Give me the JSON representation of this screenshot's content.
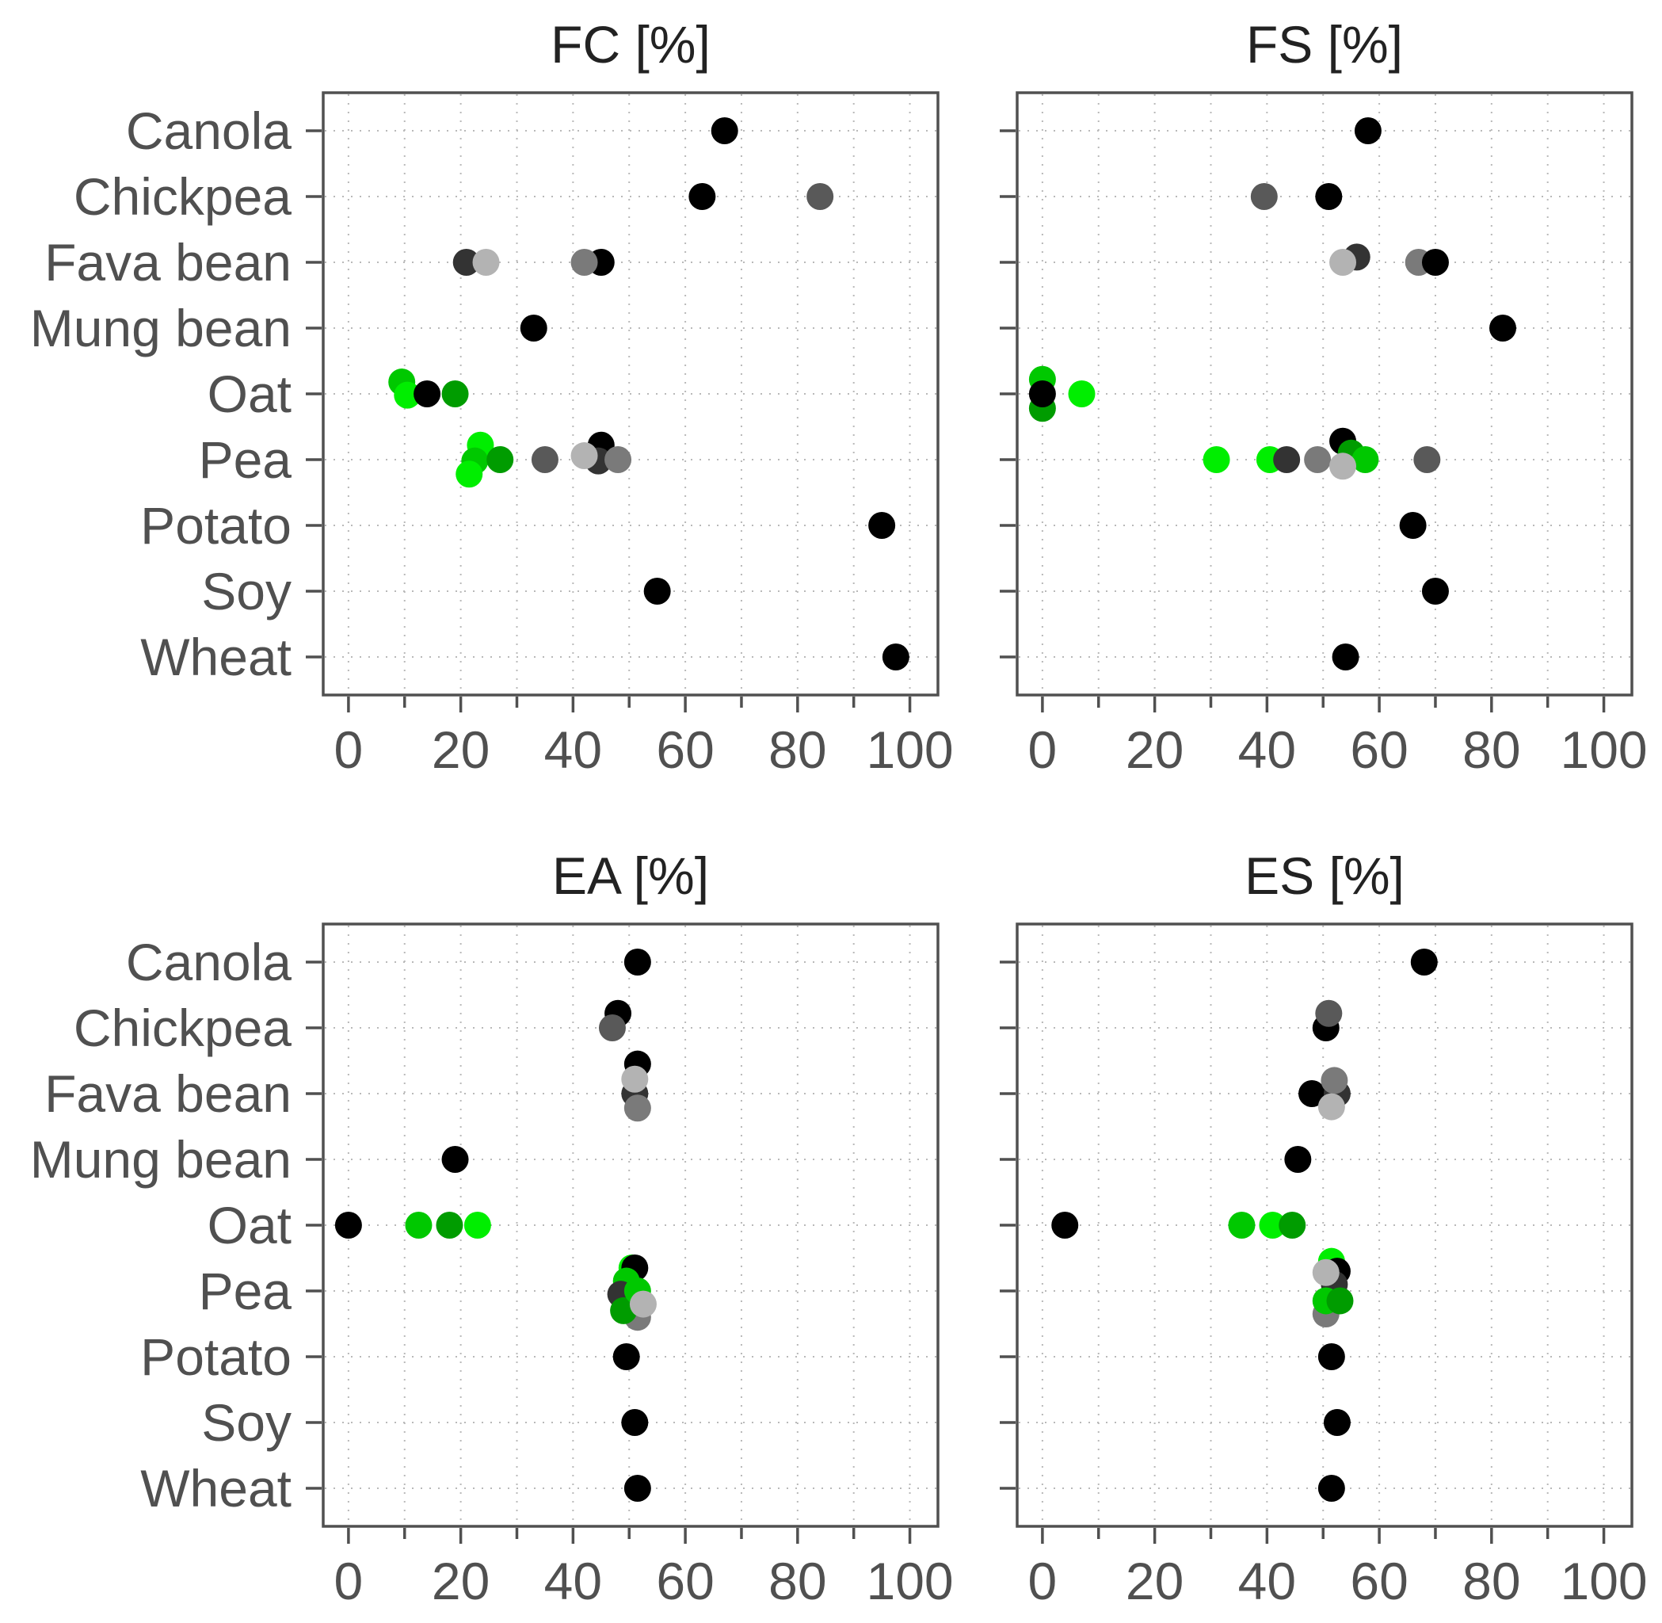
{
  "chart_data": {
    "type": "scatter",
    "layout": "2x2 facet grid, shared y categories",
    "categories": [
      "Canola",
      "Chickpea",
      "Fava bean",
      "Mung bean",
      "Oat",
      "Pea",
      "Potato",
      "Soy",
      "Wheat"
    ],
    "x_ticks": [
      0,
      20,
      40,
      60,
      80,
      100
    ],
    "xlim": [
      -4.5,
      105
    ],
    "grid": "dotted",
    "legend": "none",
    "color_legend": {
      "black": "#000000",
      "dark_grey": "#333333",
      "grey": "#595959",
      "mid_grey": "#7a7a7a",
      "light_grey": "#b3b3b3",
      "bright_green": "#00ee00",
      "green": "#00c800",
      "dark_green": "#009c00"
    },
    "panels": [
      {
        "id": "fc",
        "title": "FC [%]",
        "points": [
          {
            "category": "Canola",
            "x": 67,
            "offset": 0,
            "color": "#000000"
          },
          {
            "category": "Chickpea",
            "x": 63,
            "offset": 0,
            "color": "#000000"
          },
          {
            "category": "Chickpea",
            "x": 84,
            "offset": 0,
            "color": "#595959"
          },
          {
            "category": "Fava bean",
            "x": 21,
            "offset": 0,
            "color": "#333333"
          },
          {
            "category": "Fava bean",
            "x": 24.5,
            "offset": 0,
            "color": "#b3b3b3"
          },
          {
            "category": "Fava bean",
            "x": 45,
            "offset": 0,
            "color": "#000000"
          },
          {
            "category": "Fava bean",
            "x": 42,
            "offset": 0,
            "color": "#7a7a7a"
          },
          {
            "category": "Mung bean",
            "x": 33,
            "offset": 0,
            "color": "#000000"
          },
          {
            "category": "Oat",
            "x": 9.5,
            "offset": -0.18,
            "color": "#00c800"
          },
          {
            "category": "Oat",
            "x": 10.5,
            "offset": 0.02,
            "color": "#00ee00"
          },
          {
            "category": "Oat",
            "x": 14,
            "offset": 0,
            "color": "#000000"
          },
          {
            "category": "Oat",
            "x": 19,
            "offset": 0,
            "color": "#009c00"
          },
          {
            "category": "Pea",
            "x": 23.5,
            "offset": -0.22,
            "color": "#00ee00"
          },
          {
            "category": "Pea",
            "x": 22.5,
            "offset": 0.02,
            "color": "#00c800"
          },
          {
            "category": "Pea",
            "x": 21.5,
            "offset": 0.22,
            "color": "#00ee00"
          },
          {
            "category": "Pea",
            "x": 27,
            "offset": 0,
            "color": "#009c00"
          },
          {
            "category": "Pea",
            "x": 35,
            "offset": 0,
            "color": "#595959"
          },
          {
            "category": "Pea",
            "x": 45,
            "offset": -0.22,
            "color": "#000000"
          },
          {
            "category": "Pea",
            "x": 44.5,
            "offset": 0.02,
            "color": "#333333"
          },
          {
            "category": "Pea",
            "x": 48,
            "offset": 0,
            "color": "#7a7a7a"
          },
          {
            "category": "Pea",
            "x": 42,
            "offset": -0.06,
            "color": "#b3b3b3"
          },
          {
            "category": "Potato",
            "x": 95,
            "offset": 0,
            "color": "#000000"
          },
          {
            "category": "Soy",
            "x": 55,
            "offset": 0,
            "color": "#000000"
          },
          {
            "category": "Wheat",
            "x": 97.5,
            "offset": 0,
            "color": "#000000"
          }
        ]
      },
      {
        "id": "fs",
        "title": "FS [%]",
        "points": [
          {
            "category": "Canola",
            "x": 58,
            "offset": 0,
            "color": "#000000"
          },
          {
            "category": "Chickpea",
            "x": 39.5,
            "offset": 0,
            "color": "#595959"
          },
          {
            "category": "Chickpea",
            "x": 51,
            "offset": 0,
            "color": "#000000"
          },
          {
            "category": "Fava bean",
            "x": 56,
            "offset": -0.08,
            "color": "#333333"
          },
          {
            "category": "Fava bean",
            "x": 53.5,
            "offset": 0,
            "color": "#b3b3b3"
          },
          {
            "category": "Fava bean",
            "x": 67,
            "offset": 0,
            "color": "#7a7a7a"
          },
          {
            "category": "Fava bean",
            "x": 70,
            "offset": 0,
            "color": "#000000"
          },
          {
            "category": "Mung bean",
            "x": 82,
            "offset": 0,
            "color": "#000000"
          },
          {
            "category": "Oat",
            "x": 0,
            "offset": -0.22,
            "color": "#00c800"
          },
          {
            "category": "Oat",
            "x": 0,
            "offset": 0.22,
            "color": "#009c00"
          },
          {
            "category": "Oat",
            "x": 0,
            "offset": 0,
            "color": "#000000"
          },
          {
            "category": "Oat",
            "x": 7,
            "offset": 0,
            "color": "#00ee00"
          },
          {
            "category": "Pea",
            "x": 31,
            "offset": 0,
            "color": "#00ee00"
          },
          {
            "category": "Pea",
            "x": 40.5,
            "offset": 0,
            "color": "#00ee00"
          },
          {
            "category": "Pea",
            "x": 43.5,
            "offset": 0,
            "color": "#333333"
          },
          {
            "category": "Pea",
            "x": 49,
            "offset": 0,
            "color": "#7a7a7a"
          },
          {
            "category": "Pea",
            "x": 53.5,
            "offset": -0.28,
            "color": "#000000"
          },
          {
            "category": "Pea",
            "x": 55,
            "offset": -0.1,
            "color": "#009c00"
          },
          {
            "category": "Pea",
            "x": 57.5,
            "offset": 0,
            "color": "#00c800"
          },
          {
            "category": "Pea",
            "x": 53.5,
            "offset": 0.1,
            "color": "#b3b3b3"
          },
          {
            "category": "Pea",
            "x": 68.5,
            "offset": 0,
            "color": "#595959"
          },
          {
            "category": "Potato",
            "x": 66,
            "offset": 0,
            "color": "#000000"
          },
          {
            "category": "Soy",
            "x": 70,
            "offset": 0,
            "color": "#000000"
          },
          {
            "category": "Wheat",
            "x": 54,
            "offset": 0,
            "color": "#000000"
          }
        ]
      },
      {
        "id": "ea",
        "title": "EA [%]",
        "points": [
          {
            "category": "Canola",
            "x": 51.5,
            "offset": 0,
            "color": "#000000"
          },
          {
            "category": "Chickpea",
            "x": 48,
            "offset": -0.22,
            "color": "#000000"
          },
          {
            "category": "Chickpea",
            "x": 47,
            "offset": 0,
            "color": "#595959"
          },
          {
            "category": "Fava bean",
            "x": 51.5,
            "offset": -0.45,
            "color": "#000000"
          },
          {
            "category": "Fava bean",
            "x": 51,
            "offset": 0,
            "color": "#333333"
          },
          {
            "category": "Fava bean",
            "x": 51.5,
            "offset": 0.22,
            "color": "#7a7a7a"
          },
          {
            "category": "Fava bean",
            "x": 51,
            "offset": -0.22,
            "color": "#b3b3b3"
          },
          {
            "category": "Mung bean",
            "x": 19,
            "offset": 0,
            "color": "#000000"
          },
          {
            "category": "Oat",
            "x": 0,
            "offset": 0,
            "color": "#000000"
          },
          {
            "category": "Oat",
            "x": 12.5,
            "offset": 0,
            "color": "#00c800"
          },
          {
            "category": "Oat",
            "x": 18,
            "offset": 0,
            "color": "#009c00"
          },
          {
            "category": "Oat",
            "x": 23,
            "offset": 0,
            "color": "#00ee00"
          },
          {
            "category": "Pea",
            "x": 50.5,
            "offset": -0.35,
            "color": "#00ee00"
          },
          {
            "category": "Pea",
            "x": 51,
            "offset": -0.35,
            "color": "#000000"
          },
          {
            "category": "Pea",
            "x": 49.5,
            "offset": -0.15,
            "color": "#00c800"
          },
          {
            "category": "Pea",
            "x": 48.5,
            "offset": 0.05,
            "color": "#333333"
          },
          {
            "category": "Pea",
            "x": 51.5,
            "offset": 0.4,
            "color": "#7a7a7a"
          },
          {
            "category": "Pea",
            "x": 49,
            "offset": 0.3,
            "color": "#009c00"
          },
          {
            "category": "Pea",
            "x": 51.5,
            "offset": 0,
            "color": "#00c800"
          },
          {
            "category": "Pea",
            "x": 52.5,
            "offset": 0.2,
            "color": "#b3b3b3"
          },
          {
            "category": "Potato",
            "x": 49.5,
            "offset": 0,
            "color": "#000000"
          },
          {
            "category": "Soy",
            "x": 51,
            "offset": 0,
            "color": "#000000"
          },
          {
            "category": "Wheat",
            "x": 51.5,
            "offset": 0,
            "color": "#000000"
          }
        ]
      },
      {
        "id": "es",
        "title": "ES [%]",
        "points": [
          {
            "category": "Canola",
            "x": 68,
            "offset": 0,
            "color": "#000000"
          },
          {
            "category": "Chickpea",
            "x": 50.5,
            "offset": 0,
            "color": "#000000"
          },
          {
            "category": "Chickpea",
            "x": 51,
            "offset": -0.22,
            "color": "#595959"
          },
          {
            "category": "Fava bean",
            "x": 48,
            "offset": 0,
            "color": "#000000"
          },
          {
            "category": "Fava bean",
            "x": 52.5,
            "offset": 0,
            "color": "#333333"
          },
          {
            "category": "Fava bean",
            "x": 52,
            "offset": -0.2,
            "color": "#7a7a7a"
          },
          {
            "category": "Fava bean",
            "x": 51.5,
            "offset": 0.2,
            "color": "#b3b3b3"
          },
          {
            "category": "Mung bean",
            "x": 45.5,
            "offset": 0,
            "color": "#000000"
          },
          {
            "category": "Oat",
            "x": 4,
            "offset": 0,
            "color": "#000000"
          },
          {
            "category": "Oat",
            "x": 35.5,
            "offset": 0,
            "color": "#00c800"
          },
          {
            "category": "Oat",
            "x": 41,
            "offset": 0,
            "color": "#00ee00"
          },
          {
            "category": "Oat",
            "x": 44.5,
            "offset": 0,
            "color": "#009c00"
          },
          {
            "category": "Pea",
            "x": 51.5,
            "offset": -0.45,
            "color": "#00ee00"
          },
          {
            "category": "Pea",
            "x": 52.5,
            "offset": -0.3,
            "color": "#000000"
          },
          {
            "category": "Pea",
            "x": 52,
            "offset": -0.1,
            "color": "#333333"
          },
          {
            "category": "Pea",
            "x": 50.5,
            "offset": 0.35,
            "color": "#7a7a7a"
          },
          {
            "category": "Pea",
            "x": 50.5,
            "offset": 0.15,
            "color": "#00c800"
          },
          {
            "category": "Pea",
            "x": 53,
            "offset": 0.15,
            "color": "#009c00"
          },
          {
            "category": "Pea",
            "x": 50.5,
            "offset": -0.28,
            "color": "#b3b3b3"
          },
          {
            "category": "Potato",
            "x": 51.5,
            "offset": 0,
            "color": "#000000"
          },
          {
            "category": "Soy",
            "x": 52.5,
            "offset": 0,
            "color": "#000000"
          },
          {
            "category": "Wheat",
            "x": 51.5,
            "offset": 0,
            "color": "#000000"
          }
        ]
      }
    ]
  }
}
